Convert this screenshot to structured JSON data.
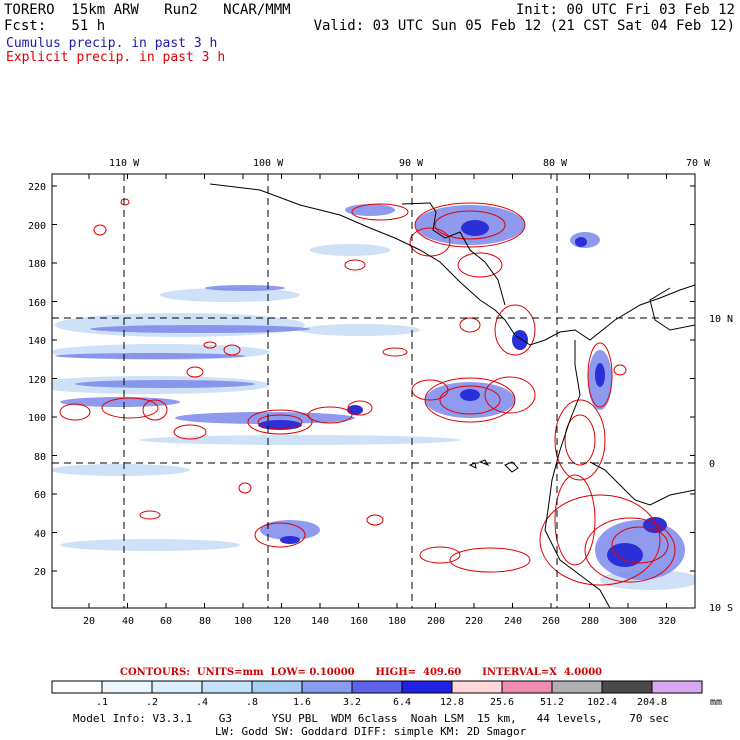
{
  "header": {
    "model": "TORERO  15km ARW   Run2   NCAR/MMM",
    "init": "Init: 00 UTC Fri 03 Feb 12",
    "fcst": "Fcst:   51 h",
    "valid": "Valid: 03 UTC Sun 05 Feb 12 (21 CST Sat 04 Feb 12)"
  },
  "legend": {
    "cumulus": "Cumulus precip. in past 3 h",
    "explicit": "Explicit precip. in past 3 h",
    "cumulus_color": "#1c1ca8",
    "explicit_color": "#e00000"
  },
  "map": {
    "lon_labels": [
      "110 W",
      "100 W",
      "90 W",
      "80 W",
      "70 W"
    ],
    "lat_labels": [
      "10 N",
      "0",
      "10 S"
    ],
    "x_ticks": [
      "20",
      "40",
      "60",
      "80",
      "100",
      "120",
      "140",
      "160",
      "180",
      "200",
      "220",
      "240",
      "260",
      "280",
      "300",
      "320"
    ],
    "y_ticks": [
      "20",
      "40",
      "60",
      "80",
      "100",
      "120",
      "140",
      "160",
      "180",
      "200",
      "220"
    ]
  },
  "contours": {
    "label": "CONTOURS:  UNITS=mm  LOW= 0.10000      HIGH=  409.60      INTERVAL=X  4.0000"
  },
  "colorbar": {
    "labels": [
      ".1",
      ".2",
      ".4",
      ".8",
      "1.6",
      "3.2",
      "6.4",
      "12.8",
      "25.6",
      "51.2",
      "102.4",
      "204.8"
    ],
    "unit": "mm",
    "colors": [
      "#ffffff",
      "#eef6fd",
      "#dceefb",
      "#c6e2f8",
      "#a8cdf3",
      "#8a9cf0",
      "#5d63ec",
      "#2222e6",
      "#ffd6da",
      "#f08cb0",
      "#b0b0b0",
      "#4a4a4a",
      "#d8a8f0"
    ]
  },
  "model_info": {
    "line1": "Model Info: V3.3.1    G3      YSU PBL  WDM 6class  Noah LSM  15 km,   44 levels,    70 sec",
    "line2": "LW: Godd SW: Goddard DIFF: simple KM: 2D Smagor"
  }
}
